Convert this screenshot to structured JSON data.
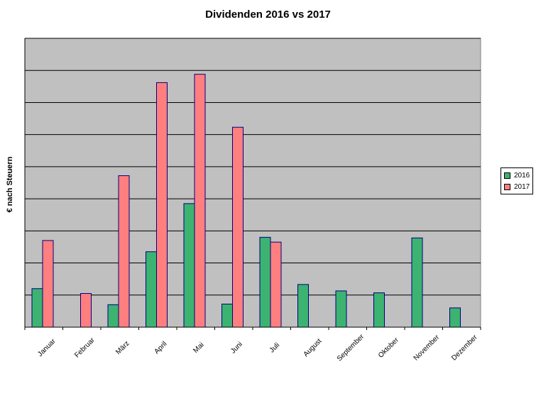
{
  "chart_data": {
    "type": "bar",
    "title": "Dividenden 2016 vs 2017",
    "xlabel": "",
    "ylabel": "€ nach Steuern",
    "ylim": [
      0,
      9
    ],
    "grid": true,
    "legend_position": "right",
    "categories": [
      "Januar",
      "Februar",
      "März",
      "April",
      "Mai",
      "Juni",
      "Juli",
      "August",
      "September",
      "Oktober",
      "November",
      "Dezember"
    ],
    "series": [
      {
        "name": "2016",
        "color": "#3CB371",
        "values": [
          1.2,
          0,
          0.7,
          2.35,
          3.85,
          0.72,
          2.8,
          1.33,
          1.13,
          1.07,
          2.78,
          0.6
        ]
      },
      {
        "name": "2017",
        "color": "#FF7F7F",
        "values": [
          2.7,
          1.05,
          4.72,
          7.62,
          7.88,
          6.23,
          2.65,
          0,
          0,
          0,
          0,
          0
        ]
      }
    ],
    "plot_background": "#C0C0C0"
  }
}
